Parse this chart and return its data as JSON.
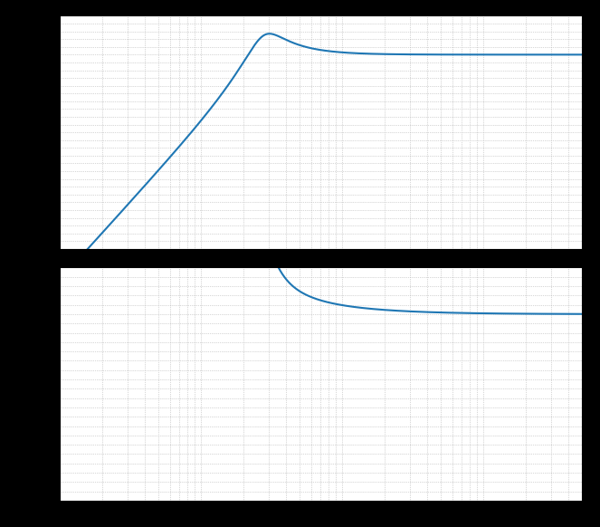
{
  "line_color": "#1f77b4",
  "line_width": 1.5,
  "background_color": "#000000",
  "axes_bg_color": "#ffffff",
  "fig_width": 6.63,
  "fig_height": 5.82,
  "dpi": 100,
  "freq_min": 1,
  "freq_max": 5000,
  "mag_ylim_min": -50,
  "mag_ylim_max": 10,
  "phase_ylim_min": -200,
  "phase_ylim_max": 50,
  "grid_color": "#b0b0b0",
  "grid_linestyle": ":",
  "grid_linewidth": 0.5,
  "spine_color": "#000000",
  "geophone_f0": 28.0,
  "geophone_zeta": 0.28,
  "phase_f0": 28.0,
  "phase_zeta": 0.28
}
